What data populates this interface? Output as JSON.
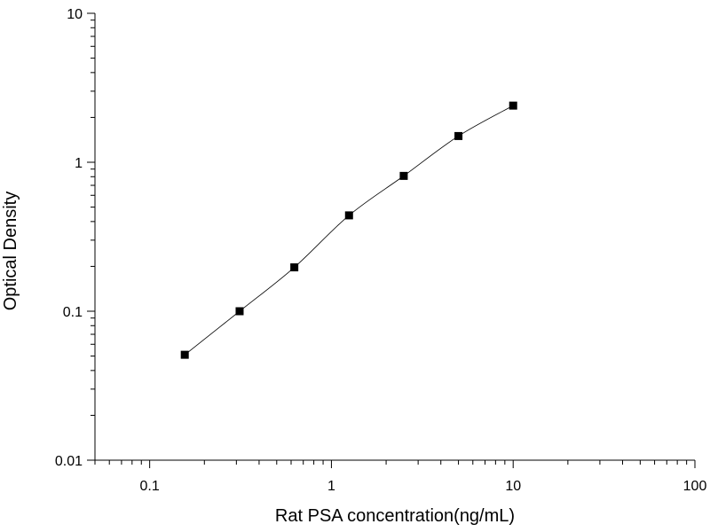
{
  "chart_data": {
    "type": "scatter",
    "title": "",
    "xlabel": "Rat PSA concentration(ng/mL)",
    "ylabel": "Optical Density",
    "xscale": "log",
    "yscale": "log",
    "xlim": [
      0.05,
      100
    ],
    "ylim": [
      0.01,
      10
    ],
    "x_ticks": [
      {
        "value": 0.1,
        "label": "0.1"
      },
      {
        "value": 1,
        "label": "1"
      },
      {
        "value": 10,
        "label": "10"
      },
      {
        "value": 100,
        "label": "100"
      }
    ],
    "y_ticks": [
      {
        "value": 0.01,
        "label": "0.01"
      },
      {
        "value": 0.1,
        "label": "0.1"
      },
      {
        "value": 1,
        "label": "1"
      },
      {
        "value": 10,
        "label": "10"
      }
    ],
    "grid": false,
    "fit_curve": true,
    "marker_color": "#000000",
    "line_color": "#000000",
    "series": [
      {
        "x": [
          0.156,
          0.3125,
          0.625,
          1.25,
          2.5,
          5,
          10
        ],
        "y": [
          0.051,
          0.1,
          0.197,
          0.44,
          0.81,
          1.5,
          2.4
        ]
      }
    ]
  }
}
